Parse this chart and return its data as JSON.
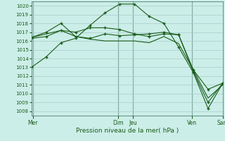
{
  "title": "Pression niveau de la mer( hPa )",
  "bg_color": "#cceee8",
  "grid_color": "#aacccc",
  "line_color": "#1a5c1a",
  "xlim": [
    0,
    13
  ],
  "ylim": [
    1007.5,
    1020.5
  ],
  "yticks": [
    1008,
    1009,
    1010,
    1011,
    1012,
    1013,
    1014,
    1015,
    1016,
    1017,
    1018,
    1019,
    1020
  ],
  "xtick_positions": [
    0.1,
    5.9,
    6.9,
    10.9,
    13.0
  ],
  "xtick_labels": [
    "Mer",
    "Dim",
    "Jeu",
    "Ven",
    "Sam"
  ],
  "vlines": [
    0.1,
    5.9,
    6.9,
    10.9
  ],
  "series": [
    {
      "x": [
        0,
        1,
        2,
        3,
        4,
        5,
        6,
        7,
        8,
        9,
        10,
        11,
        12,
        13
      ],
      "y": [
        1013.0,
        1014.2,
        1015.8,
        1016.3,
        1017.8,
        1019.2,
        1020.2,
        1020.2,
        1018.8,
        1018.0,
        1015.3,
        1012.4,
        1008.3,
        1011.2
      ],
      "marker": true
    },
    {
      "x": [
        0,
        1,
        2,
        3,
        4,
        5,
        6,
        7,
        8,
        9,
        10,
        11,
        12,
        13
      ],
      "y": [
        1016.4,
        1017.0,
        1018.0,
        1016.5,
        1016.3,
        1016.8,
        1016.6,
        1016.7,
        1016.8,
        1017.0,
        1016.7,
        1012.7,
        1010.5,
        1011.2
      ],
      "marker": true
    },
    {
      "x": [
        0,
        1,
        2,
        3,
        4,
        5,
        6,
        7,
        8,
        9,
        10,
        11,
        12,
        13
      ],
      "y": [
        1016.4,
        1016.8,
        1017.2,
        1016.5,
        1016.2,
        1016.0,
        1016.0,
        1016.0,
        1015.8,
        1016.5,
        1015.7,
        1012.7,
        1009.5,
        1011.0
      ],
      "marker": false
    },
    {
      "x": [
        0,
        1,
        2,
        3,
        4,
        5,
        6,
        7,
        8,
        9,
        10,
        11,
        12,
        13
      ],
      "y": [
        1016.3,
        1016.5,
        1017.2,
        1017.0,
        1017.5,
        1017.5,
        1017.3,
        1016.8,
        1016.5,
        1016.8,
        1016.7,
        1012.5,
        1009.0,
        1011.2
      ],
      "marker": true
    }
  ]
}
